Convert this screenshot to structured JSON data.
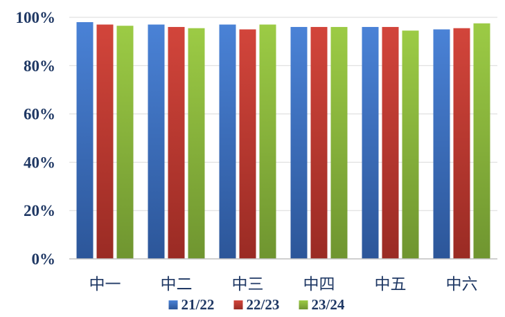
{
  "chart_data": {
    "type": "bar",
    "title": "",
    "xlabel": "",
    "ylabel": "",
    "categories": [
      "中一",
      "中二",
      "中三",
      "中四",
      "中五",
      "中六"
    ],
    "ylim": [
      0,
      100
    ],
    "y_ticks": [
      0,
      20,
      40,
      60,
      80,
      100
    ],
    "y_tick_labels": [
      "0%",
      "20%",
      "40%",
      "60%",
      "80%",
      "100%"
    ],
    "grid": "horizontal",
    "legend_position": "bottom",
    "series": [
      {
        "name": "21/22",
        "color": "#3b6fc4",
        "values": [
          98,
          97,
          97,
          96,
          96,
          95
        ]
      },
      {
        "name": "22/23",
        "color": "#c0392f",
        "values": [
          97,
          96,
          95,
          96,
          96,
          95.5
        ]
      },
      {
        "name": "23/24",
        "color": "#8cb43a",
        "values": [
          96.5,
          95.5,
          97,
          96,
          94.5,
          97.5
        ]
      }
    ]
  }
}
